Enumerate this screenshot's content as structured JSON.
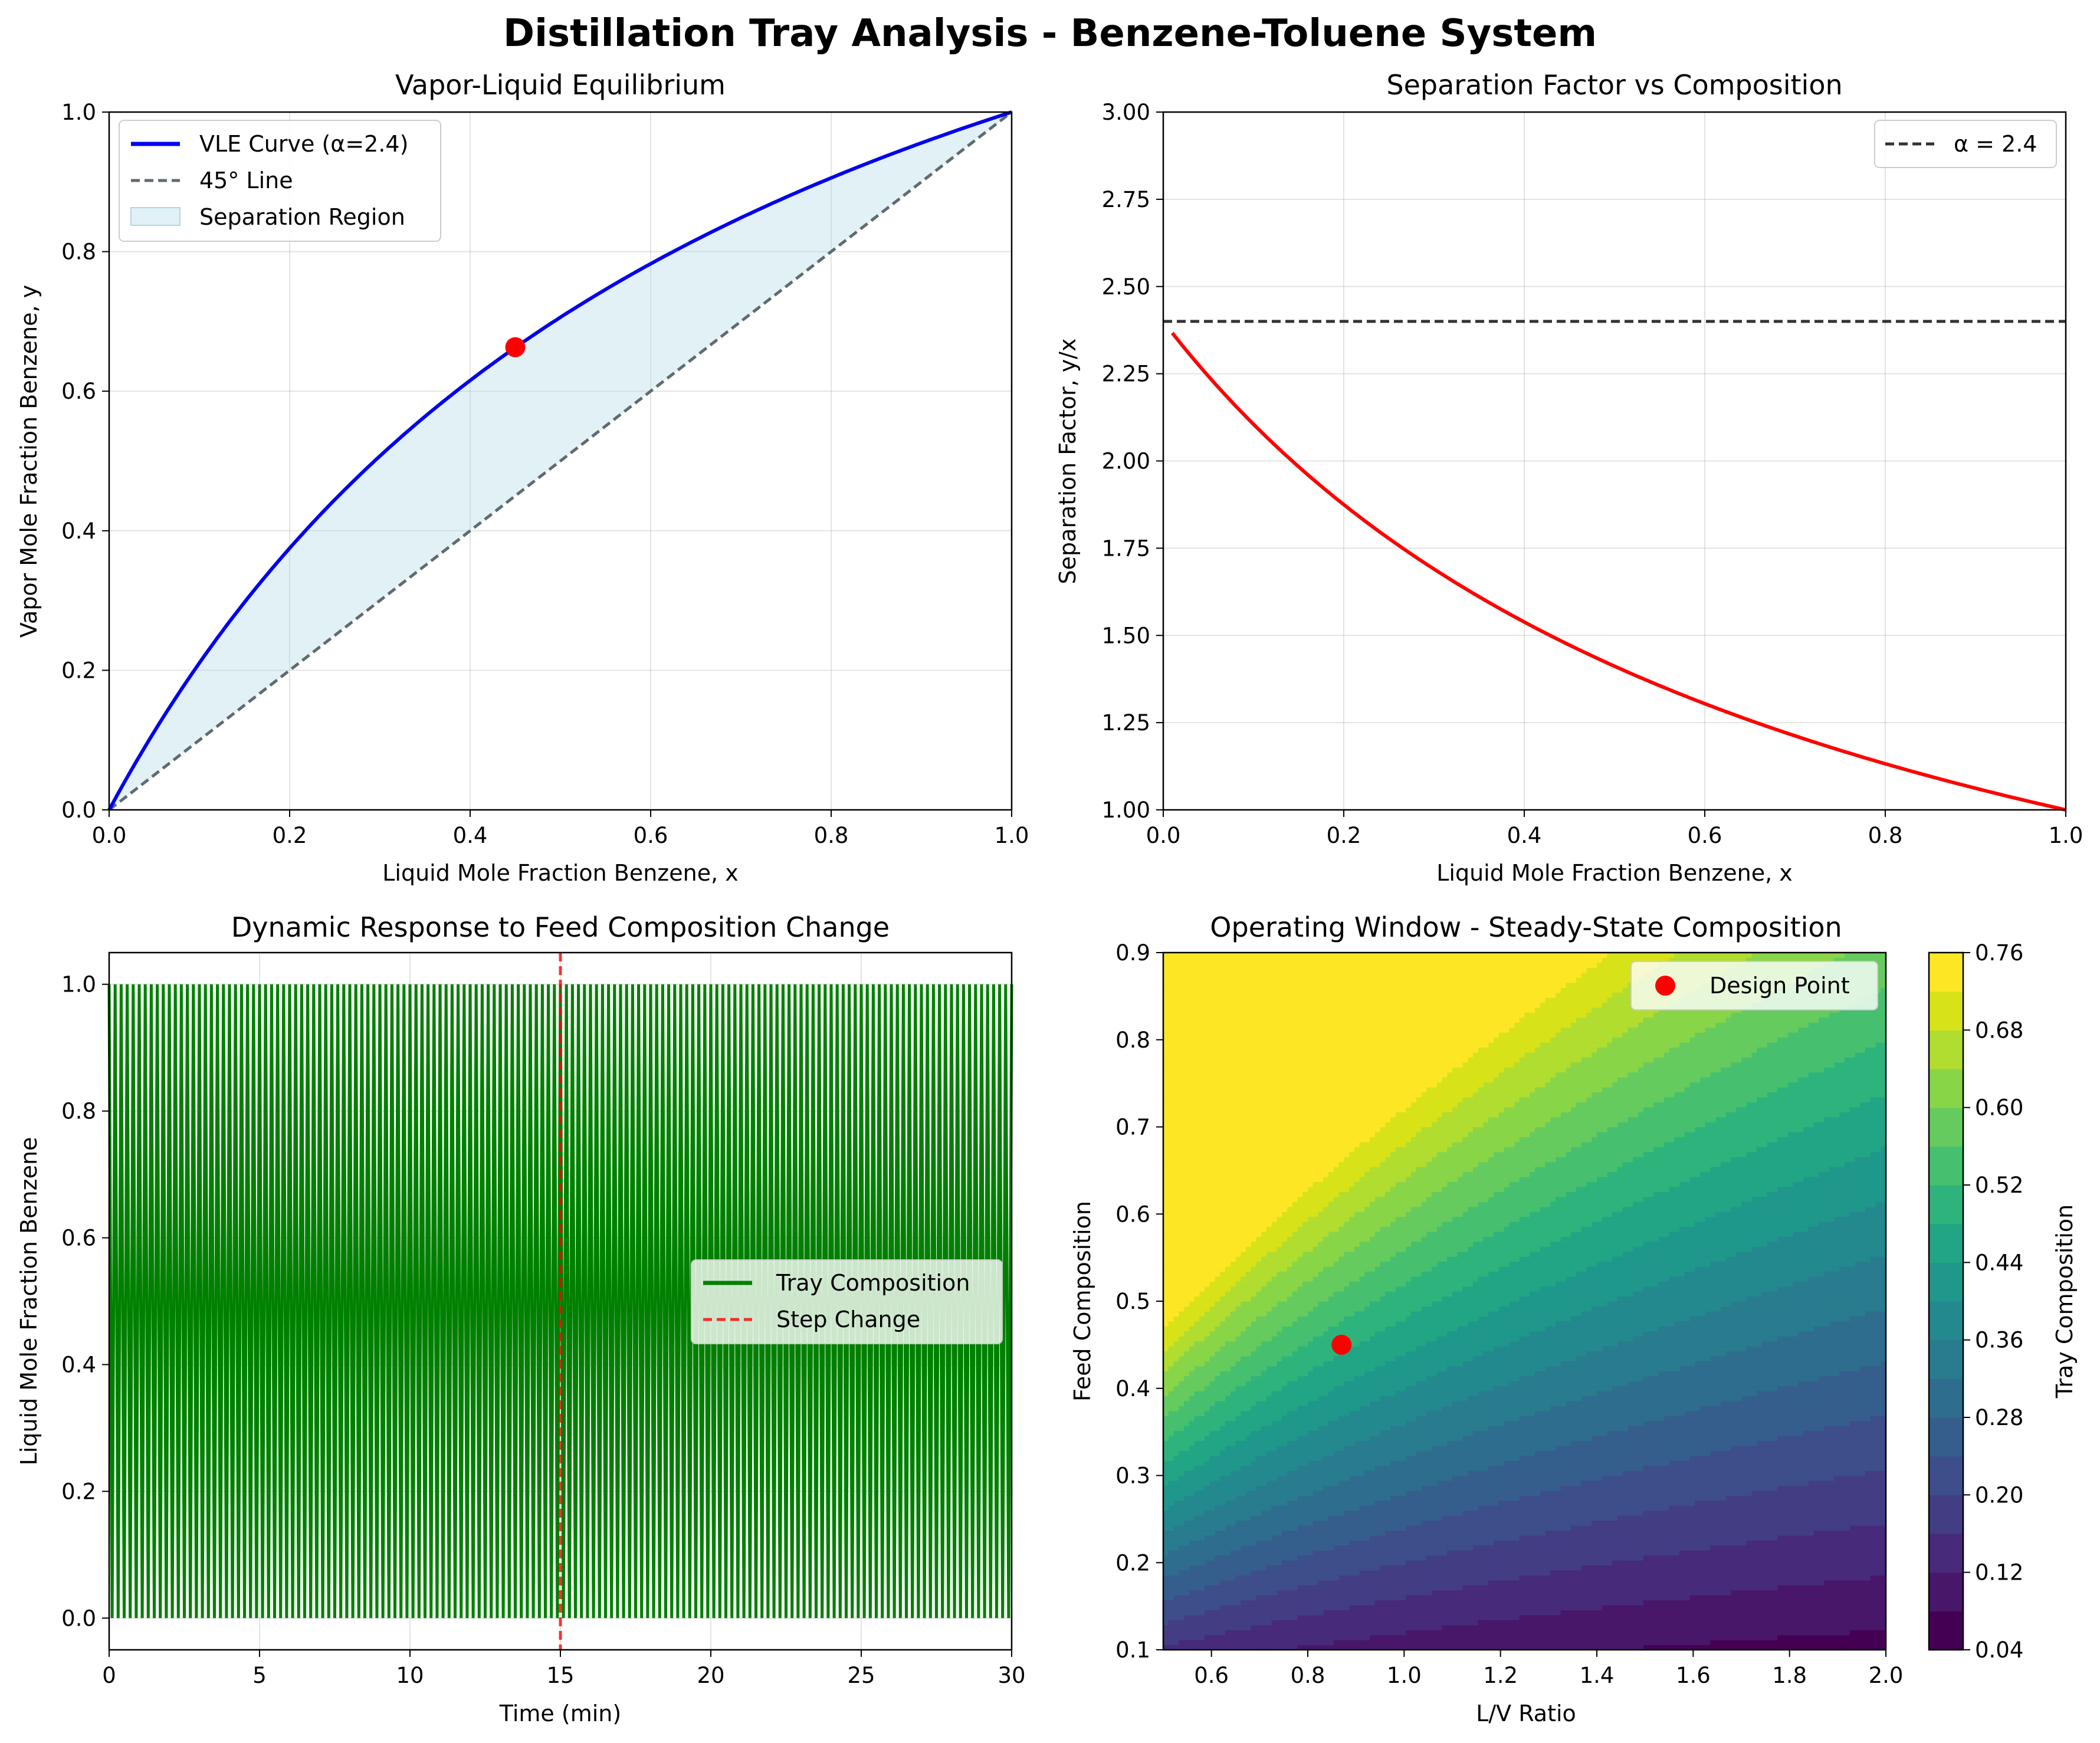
{
  "suptitle": "Distillation Tray Analysis - Benzene-Toluene System",
  "chart_data": [
    {
      "type": "line",
      "title": "Vapor-Liquid Equilibrium",
      "xlabel": "Liquid Mole Fraction Benzene, x",
      "ylabel": "Vapor Mole Fraction Benzene, y",
      "xlim": [
        0,
        1
      ],
      "ylim": [
        0,
        1
      ],
      "xticks": [
        "0.0",
        "0.2",
        "0.4",
        "0.6",
        "0.8",
        "1.0"
      ],
      "yticks": [
        "0.0",
        "0.2",
        "0.4",
        "0.6",
        "0.8",
        "1.0"
      ],
      "grid": true,
      "legend_position": "upper-left",
      "alpha": 2.4,
      "series": [
        {
          "name": "VLE Curve (α=2.4)",
          "color": "#0000ee",
          "style": "solid",
          "x": [
            0,
            0.05,
            0.1,
            0.15,
            0.2,
            0.25,
            0.3,
            0.35,
            0.4,
            0.45,
            0.5,
            0.55,
            0.6,
            0.65,
            0.7,
            0.75,
            0.8,
            0.85,
            0.9,
            0.95,
            1.0
          ],
          "y": [
            0,
            0.112,
            0.211,
            0.298,
            0.375,
            0.444,
            0.507,
            0.564,
            0.615,
            0.663,
            0.706,
            0.746,
            0.783,
            0.817,
            0.848,
            0.878,
            0.906,
            0.932,
            0.956,
            0.979,
            1.0
          ]
        },
        {
          "name": "45° Line",
          "color": "#5f6b70",
          "style": "dashed",
          "x": [
            0,
            1
          ],
          "y": [
            0,
            1
          ]
        },
        {
          "name": "Separation Region",
          "color": "#add8e6",
          "style": "fill"
        }
      ],
      "point": {
        "x": 0.45,
        "y": 0.663,
        "color": "#ff0000"
      }
    },
    {
      "type": "line",
      "title": "Separation Factor vs Composition",
      "xlabel": "Liquid Mole Fraction Benzene, x",
      "ylabel": "Separation Factor, y/x",
      "xlim": [
        0,
        1
      ],
      "ylim": [
        1.0,
        3.0
      ],
      "xticks": [
        "0.0",
        "0.2",
        "0.4",
        "0.6",
        "0.8",
        "1.0"
      ],
      "yticks": [
        "1.00",
        "1.25",
        "1.50",
        "1.75",
        "2.00",
        "2.25",
        "2.50",
        "2.75",
        "3.00"
      ],
      "grid": true,
      "legend_position": "upper-right",
      "series": [
        {
          "name": "",
          "color": "#ff0000",
          "style": "solid",
          "x": [
            0.01,
            0.05,
            0.1,
            0.15,
            0.2,
            0.25,
            0.3,
            0.35,
            0.4,
            0.45,
            0.5,
            0.55,
            0.6,
            0.65,
            0.7,
            0.75,
            0.8,
            0.85,
            0.9,
            0.95,
            1.0
          ],
          "y": [
            2.367,
            2.243,
            2.105,
            1.983,
            1.875,
            1.778,
            1.69,
            1.611,
            1.538,
            1.472,
            1.412,
            1.356,
            1.304,
            1.257,
            1.212,
            1.171,
            1.132,
            1.096,
            1.062,
            1.03,
            1.0
          ]
        },
        {
          "name": "α = 2.4",
          "color": "#333333",
          "style": "dashed",
          "y_const": 2.4
        }
      ]
    },
    {
      "type": "line",
      "title": "Dynamic Response to Feed Composition Change",
      "xlabel": "Time (min)",
      "ylabel": "Liquid Mole Fraction Benzene",
      "xlim": [
        0,
        30
      ],
      "ylim": [
        -0.05,
        1.05
      ],
      "xticks": [
        "0",
        "5",
        "10",
        "15",
        "20",
        "25",
        "30"
      ],
      "yticks": [
        "0.0",
        "0.2",
        "0.4",
        "0.6",
        "0.8",
        "1.0"
      ],
      "grid": true,
      "legend_position": "center-right",
      "series": [
        {
          "name": "Tray Composition",
          "color": "#008000",
          "style": "oscillation",
          "min": 0.0,
          "max": 1.0,
          "period_min": 0.2
        },
        {
          "name": "Step Change",
          "color": "#ff0000",
          "style": "dashed",
          "x_const": 15
        }
      ]
    },
    {
      "type": "heatmap",
      "title": "Operating Window - Steady-State Composition",
      "xlabel": "L/V Ratio",
      "ylabel": "Feed Composition",
      "colorbar_label": "Tray Composition",
      "xlim": [
        0.5,
        2.0
      ],
      "ylim": [
        0.1,
        0.9
      ],
      "xticks": [
        "0.6",
        "0.8",
        "1.0",
        "1.2",
        "1.4",
        "1.6",
        "1.8",
        "2.0"
      ],
      "yticks": [
        "0.1",
        "0.2",
        "0.3",
        "0.4",
        "0.5",
        "0.6",
        "0.7",
        "0.8",
        "0.9"
      ],
      "colorbar_ticks": [
        "0.04",
        "0.12",
        "0.20",
        "0.28",
        "0.36",
        "0.44",
        "0.52",
        "0.60",
        "0.68",
        "0.76"
      ],
      "levels": [
        0.04,
        0.08,
        0.12,
        0.16,
        0.2,
        0.24,
        0.28,
        0.32,
        0.36,
        0.4,
        0.44,
        0.48,
        0.52,
        0.56,
        0.6,
        0.64,
        0.68,
        0.72,
        0.76
      ],
      "colors": [
        "#440154",
        "#481769",
        "#472a7a",
        "#433d84",
        "#3d4e8a",
        "#355e8d",
        "#2e6d8e",
        "#297b8e",
        "#23898e",
        "#1f978b",
        "#21a585",
        "#2eb37c",
        "#46c06f",
        "#65cb5e",
        "#89d548",
        "#b0dd2f",
        "#d8e219",
        "#fde725"
      ],
      "legend_position": "upper-right",
      "series": [
        {
          "name": "Design Point",
          "color": "#ff0000",
          "x": 0.87,
          "y": 0.45
        }
      ]
    }
  ]
}
